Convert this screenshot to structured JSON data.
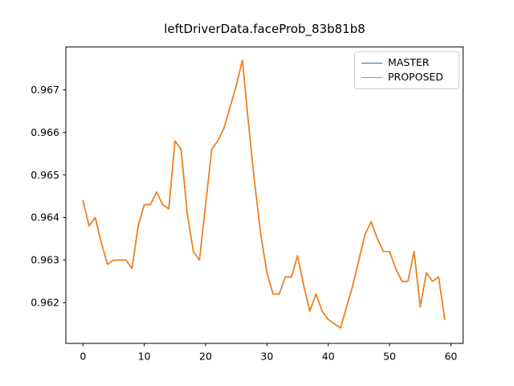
{
  "chart_data": {
    "type": "line",
    "title": "leftDriverData.faceProb_83b81b8",
    "xlabel": "",
    "ylabel": "",
    "grid": false,
    "legend_position": "upper right",
    "xlim": [
      -2.79,
      62.0
    ],
    "ylim": [
      0.96104,
      0.96801
    ],
    "xticks": [
      0,
      10,
      20,
      30,
      40,
      50,
      60
    ],
    "yticks": [
      0.962,
      0.963,
      0.964,
      0.965,
      0.966,
      0.967
    ],
    "ytick_decimals": 3,
    "x": [
      0,
      1,
      2,
      3,
      4,
      5,
      6,
      7,
      8,
      9,
      10,
      11,
      12,
      13,
      14,
      15,
      16,
      17,
      18,
      19,
      20,
      21,
      22,
      23,
      24,
      25,
      26,
      27,
      28,
      29,
      30,
      31,
      32,
      33,
      34,
      35,
      36,
      37,
      38,
      39,
      40,
      41,
      42,
      43,
      44,
      45,
      46,
      47,
      48,
      49,
      50,
      51,
      52,
      53,
      54,
      55,
      56,
      57,
      58,
      59
    ],
    "series": [
      {
        "name": "MASTER",
        "color": "#1f77b4",
        "values": [
          0.9644,
          0.9638,
          0.964,
          0.9634,
          0.9629,
          0.963,
          0.963,
          0.963,
          0.9628,
          0.9638,
          0.9643,
          0.9643,
          0.9646,
          0.9643,
          0.9642,
          0.9658,
          0.9656,
          0.9641,
          0.9632,
          0.963,
          0.9643,
          0.9656,
          0.9658,
          0.9661,
          0.9666,
          0.9671,
          0.9677,
          0.9662,
          0.9648,
          0.9636,
          0.9627,
          0.9622,
          0.9622,
          0.9626,
          0.9626,
          0.9631,
          0.9624,
          0.9618,
          0.9622,
          0.9618,
          0.9616,
          0.9615,
          0.9614,
          0.9619,
          0.9624,
          0.963,
          0.9636,
          0.9639,
          0.9635,
          0.9632,
          0.9632,
          0.9628,
          0.9625,
          0.9625,
          0.9632,
          0.9619,
          0.9627,
          0.9625,
          0.9626,
          0.9616
        ]
      },
      {
        "name": "PROPOSED",
        "color": "#ff7f0e",
        "values": [
          0.9644,
          0.9638,
          0.964,
          0.9634,
          0.9629,
          0.963,
          0.963,
          0.963,
          0.9628,
          0.9638,
          0.9643,
          0.9643,
          0.9646,
          0.9643,
          0.9642,
          0.9658,
          0.9656,
          0.9641,
          0.9632,
          0.963,
          0.9643,
          0.9656,
          0.9658,
          0.9661,
          0.9666,
          0.9671,
          0.9677,
          0.9662,
          0.9648,
          0.9636,
          0.9627,
          0.9622,
          0.9622,
          0.9626,
          0.9626,
          0.9631,
          0.9624,
          0.9618,
          0.9622,
          0.9618,
          0.9616,
          0.9615,
          0.9614,
          0.9619,
          0.9624,
          0.963,
          0.9636,
          0.9639,
          0.9635,
          0.9632,
          0.9632,
          0.9628,
          0.9625,
          0.9625,
          0.9632,
          0.9619,
          0.9627,
          0.9625,
          0.9626,
          0.9616
        ]
      }
    ]
  }
}
